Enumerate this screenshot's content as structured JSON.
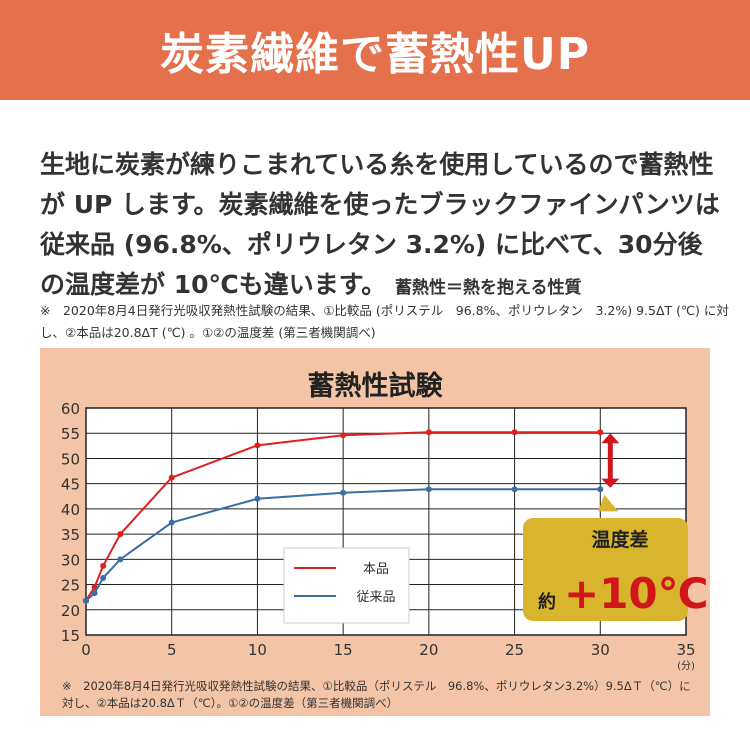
{
  "header": {
    "title": "炭素繊維で蓄熱性UP",
    "color": "#e4704c"
  },
  "description": {
    "main": "生地に炭素が練りこまれている糸を使用しているので蓄熱性が UP します。炭素繊維を使ったブラックファインパンツは従来品 (96.8%、ポリウレタン 3.2%) に比べて、30分後の温度差が 10℃も違います。",
    "note": "蓄熱性＝熱を抱える性質"
  },
  "footnote": "※　2020年8月4日発行光吸収発熱性試験の結果、①比較品 (ポリステル　96.8%、ポリウレタン　3.2%) 9.5ΔT (℃) に対し、②本品は20.8ΔT (℃) 。①②の温度差 (第三者機関調べ)",
  "chart_data": {
    "type": "line",
    "title": "蓄熱性試験",
    "xlabel": "(分)",
    "ylabel": "",
    "xlim": [
      0,
      35
    ],
    "ylim": [
      15,
      60
    ],
    "xticks": [
      0,
      5,
      10,
      15,
      20,
      25,
      30,
      35
    ],
    "yticks": [
      15,
      20,
      25,
      30,
      35,
      40,
      45,
      50,
      55,
      60
    ],
    "grid": true,
    "legend": "center",
    "x": [
      0,
      0.5,
      1,
      2,
      5,
      10,
      15,
      20,
      25,
      30
    ],
    "series": [
      {
        "name": "本品",
        "color": "#e02020",
        "values": [
          21.8,
          24.5,
          28.7,
          35,
          46.2,
          52.6,
          54.6,
          55.2,
          55.2,
          55.2
        ]
      },
      {
        "name": "従来品",
        "color": "#3a6ea5",
        "values": [
          21.8,
          23.3,
          26.3,
          30,
          37.3,
          42,
          43.2,
          43.9,
          43.9,
          43.9
        ]
      }
    ],
    "annotation": {
      "label": "温度差",
      "prefix": "約",
      "value": "+10℃"
    },
    "note": "※　2020年8月4日発行光吸収発熱性試験の結果、①比較品（ポリステル　96.8%、ポリウレタン3.2%）9.5ΔＴ（℃）に対し、②本品は20.8ΔＴ（℃）。①②の温度差（第三者機関調べ）"
  }
}
